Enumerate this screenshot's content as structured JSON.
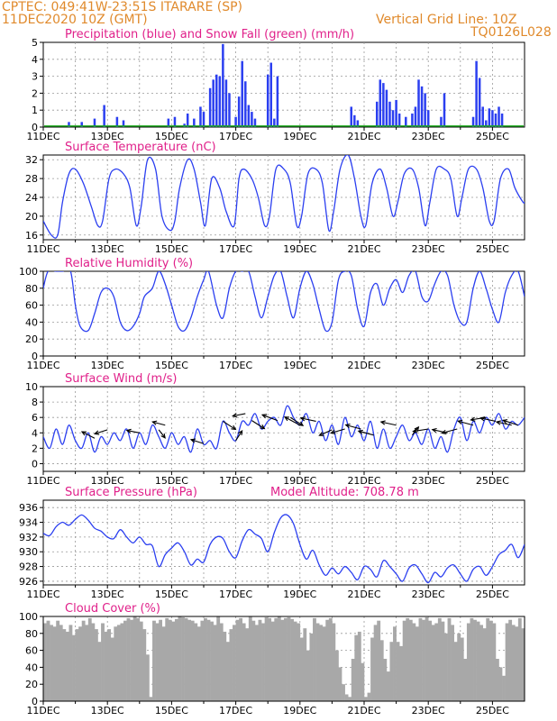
{
  "header": {
    "org_line": "CPTEC:  049:41W-23:51S  ITARARE (SP)",
    "date_line": "11DEC2020 10Z (GMT)",
    "grid_line": "Vertical Grid Line: 10Z",
    "code": "TQ0126L028"
  },
  "colors": {
    "header": "#e08a2c",
    "title": "#e0208a",
    "series": "#2b3ff0",
    "snow": "#1aa81a",
    "cloud": "#a8a8a8"
  },
  "x_labels": [
    "11DEC",
    "13DEC",
    "15DEC",
    "17DEC",
    "19DEC",
    "21DEC",
    "23DEC",
    "25DEC"
  ],
  "chart_data": [
    {
      "type": "bar",
      "title": "Precipitation (blue) and Snow Fall (green) (mm/h)",
      "ylim": [
        0,
        5
      ],
      "yticks": [
        0,
        1,
        2,
        3,
        4,
        5
      ],
      "x_unit": "days since 11DEC 10Z",
      "x": [
        0.8,
        1.2,
        1.6,
        1.9,
        2.3,
        2.5,
        3.9,
        4.1,
        4.4,
        4.5,
        4.7,
        4.9,
        5.0,
        5.2,
        5.3,
        5.4,
        5.5,
        5.6,
        5.7,
        5.8,
        6.0,
        6.1,
        6.2,
        6.3,
        6.4,
        6.5,
        6.6,
        7.0,
        7.1,
        7.2,
        7.3,
        9.6,
        9.7,
        9.8,
        10.4,
        10.5,
        10.6,
        10.7,
        10.8,
        10.9,
        11.0,
        11.1,
        11.3,
        11.5,
        11.6,
        11.7,
        11.8,
        11.9,
        12.0,
        12.4,
        12.5,
        13.4,
        13.5,
        13.6,
        13.7,
        13.8,
        13.9,
        14.0,
        14.1,
        14.2,
        14.3
      ],
      "values": [
        0.3,
        0.3,
        0.5,
        1.3,
        0.6,
        0.4,
        0.5,
        0.6,
        0.2,
        0.8,
        0.5,
        1.2,
        0.9,
        2.3,
        2.8,
        3.1,
        3.0,
        4.9,
        2.8,
        2.0,
        0.6,
        1.8,
        3.9,
        2.7,
        1.3,
        0.9,
        0.5,
        3.1,
        3.8,
        0.5,
        3.0,
        1.2,
        0.7,
        0.4,
        1.5,
        2.8,
        2.6,
        2.2,
        1.5,
        1.0,
        1.6,
        0.8,
        0.6,
        0.8,
        1.2,
        2.8,
        2.4,
        2.0,
        1.0,
        0.6,
        2.0,
        0.6,
        3.9,
        2.9,
        1.2,
        0.4,
        1.1,
        1.0,
        0.8,
        1.2,
        0.8
      ],
      "snow_value": 0.06
    },
    {
      "type": "line",
      "title": "Surface Temperature (nC)",
      "ylim": [
        15,
        33
      ],
      "yticks": [
        16,
        20,
        24,
        28,
        32
      ],
      "x_unit": "days since 11DEC 10Z",
      "x": [
        0,
        0.25,
        0.45,
        0.6,
        0.8,
        1.0,
        1.25,
        1.5,
        1.7,
        1.85,
        2.05,
        2.25,
        2.5,
        2.7,
        2.9,
        3.05,
        3.25,
        3.5,
        3.7,
        3.95,
        4.1,
        4.25,
        4.5,
        4.7,
        4.9,
        5.05,
        5.25,
        5.5,
        5.7,
        5.95,
        6.1,
        6.25,
        6.5,
        6.7,
        6.9,
        7.05,
        7.25,
        7.5,
        7.7,
        7.9,
        8.05,
        8.25,
        8.5,
        8.7,
        8.9,
        9.05,
        9.25,
        9.5,
        9.7,
        9.9,
        10.05,
        10.25,
        10.5,
        10.7,
        10.9,
        11.05,
        11.25,
        11.5,
        11.7,
        11.9,
        12.05,
        12.25,
        12.5,
        12.7,
        12.9,
        13.05,
        13.25,
        13.5,
        13.7,
        13.9,
        14.05,
        14.25,
        14.5,
        14.7
      ],
      "values": [
        19,
        16,
        16,
        23,
        29,
        30,
        27,
        22,
        18,
        19,
        28,
        30,
        29,
        26,
        18,
        22,
        32,
        30,
        20,
        17,
        19,
        26,
        32,
        30,
        23,
        18,
        28,
        26,
        21,
        18,
        28,
        30,
        28,
        24,
        18,
        20,
        30,
        30,
        27,
        18,
        20,
        29,
        30,
        27,
        17,
        21,
        30,
        33,
        28,
        20,
        18,
        27,
        30,
        26,
        20,
        23,
        29,
        30,
        26,
        18,
        23,
        30,
        30,
        28,
        20,
        24,
        30,
        30,
        26,
        19,
        19,
        28,
        30,
        26
      ],
      "x_extra": [
        14.95,
        15.0
      ],
      "values_extra": [
        23,
        23
      ]
    },
    {
      "type": "line",
      "title": "Relative Humidity (%)",
      "ylim": [
        0,
        100
      ],
      "yticks": [
        0,
        20,
        40,
        60,
        80,
        100
      ],
      "x_unit": "days since 11DEC 10Z",
      "x": [
        0,
        0.15,
        0.4,
        0.6,
        0.85,
        1.0,
        1.15,
        1.4,
        1.6,
        1.8,
        2.0,
        2.2,
        2.4,
        2.6,
        2.8,
        3.0,
        3.15,
        3.4,
        3.6,
        3.8,
        4.0,
        4.2,
        4.4,
        4.6,
        4.8,
        5.0,
        5.15,
        5.4,
        5.6,
        5.8,
        6.0,
        6.2,
        6.4,
        6.6,
        6.8,
        7.0,
        7.2,
        7.4,
        7.6,
        7.8,
        8.0,
        8.2,
        8.4,
        8.6,
        8.8,
        9.0,
        9.2,
        9.4,
        9.6,
        9.8,
        10.0,
        10.2,
        10.4,
        10.6,
        10.8,
        11.0,
        11.2,
        11.4,
        11.6,
        11.8,
        12.0,
        12.2,
        12.4,
        12.6,
        12.8,
        13.0,
        13.2,
        13.4,
        13.6,
        13.8,
        14.0,
        14.2,
        14.4,
        14.6,
        14.8,
        15.0
      ],
      "values": [
        80,
        100,
        100,
        100,
        100,
        60,
        35,
        30,
        50,
        75,
        80,
        70,
        40,
        30,
        35,
        50,
        70,
        80,
        100,
        85,
        60,
        35,
        30,
        45,
        70,
        90,
        100,
        60,
        45,
        80,
        100,
        100,
        100,
        70,
        45,
        70,
        95,
        100,
        70,
        45,
        80,
        100,
        85,
        55,
        30,
        40,
        90,
        100,
        95,
        55,
        35,
        75,
        85,
        60,
        80,
        90,
        75,
        95,
        100,
        70,
        65,
        85,
        100,
        95,
        60,
        40,
        40,
        80,
        100,
        80,
        55,
        40,
        75,
        95,
        100,
        70
      ]
    },
    {
      "type": "line",
      "title": "Surface Wind (m/s)",
      "ylim": [
        -1,
        10
      ],
      "yticks": [
        0,
        2,
        4,
        6,
        8,
        10
      ],
      "x_unit": "days since 11DEC 10Z",
      "x": [
        0,
        0.2,
        0.4,
        0.6,
        0.8,
        1.0,
        1.2,
        1.4,
        1.6,
        1.8,
        2.0,
        2.2,
        2.4,
        2.6,
        2.8,
        3.0,
        3.2,
        3.4,
        3.6,
        3.8,
        4.0,
        4.2,
        4.4,
        4.6,
        4.8,
        5.0,
        5.2,
        5.4,
        5.6,
        5.8,
        6.0,
        6.2,
        6.4,
        6.6,
        6.8,
        7.0,
        7.2,
        7.4,
        7.6,
        7.8,
        8.0,
        8.2,
        8.4,
        8.6,
        8.8,
        9.0,
        9.2,
        9.4,
        9.6,
        9.8,
        10.0,
        10.2,
        10.4,
        10.6,
        10.8,
        11.0,
        11.2,
        11.4,
        11.6,
        11.8,
        12.0,
        12.2,
        12.4,
        12.6,
        12.8,
        13.0,
        13.2,
        13.4,
        13.6,
        13.8,
        14.0,
        14.2,
        14.4,
        14.6,
        14.8,
        15.0
      ],
      "values": [
        3.5,
        2.0,
        4.5,
        2.5,
        5.0,
        3.0,
        2.0,
        4.0,
        1.5,
        3.5,
        2.5,
        4.0,
        3.0,
        4.5,
        2.0,
        4.0,
        2.5,
        5.0,
        3.5,
        2.0,
        4.0,
        2.5,
        3.5,
        1.5,
        4.5,
        2.5,
        3.0,
        2.0,
        5.5,
        4.0,
        3.0,
        5.5,
        5.0,
        6.5,
        4.5,
        5.5,
        6.0,
        5.0,
        7.5,
        6.0,
        5.0,
        6.5,
        4.0,
        5.5,
        3.0,
        5.0,
        2.5,
        6.0,
        3.5,
        5.0,
        3.0,
        5.5,
        2.0,
        4.5,
        2.0,
        3.5,
        5.0,
        3.0,
        4.0,
        2.5,
        4.5,
        2.0,
        3.5,
        1.5,
        4.5,
        6.0,
        3.0,
        5.5,
        4.0,
        6.0,
        5.0,
        6.5,
        4.5,
        5.5,
        5.0,
        6.0
      ],
      "arrows": [
        [
          1.6,
          3.3,
          -1,
          0.8
        ],
        [
          2.0,
          4.4,
          -1,
          -0.5
        ],
        [
          3.0,
          4.0,
          -1,
          0.3
        ],
        [
          3.6,
          4.4,
          0.5,
          -1
        ],
        [
          3.8,
          5.0,
          -1,
          0.4
        ],
        [
          5.0,
          2.6,
          -1,
          0.5
        ],
        [
          5.6,
          5.5,
          1,
          -1
        ],
        [
          6.0,
          3.0,
          0.5,
          1.2
        ],
        [
          6.3,
          6.5,
          -1,
          -0.3
        ],
        [
          6.5,
          5.6,
          1,
          -1
        ],
        [
          7.3,
          5.6,
          -1.2,
          0.7
        ],
        [
          7.7,
          6.0,
          1,
          -1
        ],
        [
          8.0,
          5.0,
          -1.2,
          1
        ],
        [
          8.5,
          5.5,
          -1.2,
          0.4
        ],
        [
          9.0,
          4.4,
          -1,
          -0.7
        ],
        [
          9.4,
          4.5,
          -1.1,
          -0.5
        ],
        [
          9.9,
          4.5,
          -1.2,
          0.5
        ],
        [
          10.3,
          3.7,
          -1.2,
          0.5
        ],
        [
          11.0,
          5.0,
          -1.2,
          0.4
        ],
        [
          11.5,
          3.7,
          0.5,
          1
        ],
        [
          12.0,
          4.5,
          -1.2,
          -0.3
        ],
        [
          12.6,
          4.0,
          -1.2,
          0.4
        ],
        [
          12.9,
          4.5,
          -1.2,
          -0.5
        ],
        [
          13.4,
          5.0,
          -1.2,
          0.5
        ],
        [
          13.8,
          6.0,
          -1.2,
          -0.3
        ],
        [
          14.1,
          5.5,
          -1.2,
          0.4
        ],
        [
          14.6,
          5.0,
          -1.2,
          0.4
        ],
        [
          14.8,
          5.0,
          -1.2,
          0.6
        ]
      ]
    },
    {
      "type": "line",
      "title": "Surface Pressure (hPa)",
      "subtitle": "Model Altitude: 708.78 m",
      "ylim": [
        925.5,
        937
      ],
      "yticks": [
        926,
        928,
        930,
        932,
        934,
        936
      ],
      "x_unit": "days since 11DEC 10Z",
      "x": [
        0,
        0.2,
        0.4,
        0.6,
        0.8,
        1.0,
        1.2,
        1.4,
        1.6,
        1.8,
        2.0,
        2.2,
        2.4,
        2.6,
        2.8,
        3.0,
        3.2,
        3.4,
        3.6,
        3.8,
        4.0,
        4.2,
        4.4,
        4.6,
        4.8,
        5.0,
        5.2,
        5.4,
        5.6,
        5.8,
        6.0,
        6.2,
        6.4,
        6.6,
        6.8,
        7.0,
        7.2,
        7.4,
        7.6,
        7.8,
        8.0,
        8.2,
        8.4,
        8.6,
        8.8,
        9.0,
        9.2,
        9.4,
        9.6,
        9.8,
        10.0,
        10.2,
        10.4,
        10.6,
        10.8,
        11.0,
        11.2,
        11.4,
        11.6,
        11.8,
        12.0,
        12.2,
        12.4,
        12.6,
        12.8,
        13.0,
        13.2,
        13.4,
        13.6,
        13.8,
        14.0,
        14.2,
        14.4,
        14.6,
        14.8,
        15.0
      ],
      "values": [
        932.5,
        932.2,
        933.4,
        934.0,
        933.6,
        934.4,
        935.0,
        934.3,
        933.2,
        932.8,
        932.0,
        931.8,
        933.0,
        932.0,
        931.2,
        932.0,
        931.0,
        930.8,
        928.0,
        929.6,
        930.5,
        931.2,
        930.0,
        928.2,
        929.0,
        928.6,
        931.0,
        932.0,
        931.8,
        930.0,
        929.2,
        931.5,
        933.0,
        932.4,
        931.8,
        930.0,
        932.6,
        934.6,
        935.0,
        933.8,
        931.0,
        929.0,
        930.2,
        928.2,
        926.8,
        927.8,
        927.0,
        928.0,
        927.2,
        926.2,
        928.0,
        927.6,
        926.6,
        928.8,
        928.0,
        927.0,
        926.0,
        927.8,
        928.2,
        927.0,
        925.8,
        927.2,
        926.6,
        927.8,
        928.2,
        927.0,
        926.0,
        927.6,
        928.0,
        926.8,
        928.0,
        929.6,
        930.2,
        931.0,
        929.2,
        931.0
      ]
    },
    {
      "type": "bar",
      "title": "Cloud Cover (%)",
      "ylim": [
        0,
        100
      ],
      "yticks": [
        0,
        20,
        40,
        60,
        80,
        100
      ],
      "x_unit": "days since 11DEC 10Z",
      "x_step": 0.1,
      "values": [
        92,
        95,
        90,
        88,
        95,
        90,
        85,
        82,
        90,
        78,
        85,
        88,
        95,
        90,
        98,
        92,
        85,
        70,
        92,
        82,
        85,
        75,
        88,
        90,
        92,
        95,
        98,
        96,
        100,
        98,
        94,
        85,
        55,
        5,
        95,
        92,
        96,
        88,
        98,
        96,
        94,
        97,
        100,
        99,
        98,
        96,
        95,
        92,
        88,
        95,
        98,
        96,
        94,
        90,
        100,
        92,
        82,
        70,
        85,
        90,
        96,
        98,
        92,
        86,
        100,
        95,
        90,
        96,
        92,
        99,
        98,
        94,
        98,
        100,
        96,
        98,
        99,
        97,
        94,
        92,
        75,
        86,
        60,
        80,
        98,
        92,
        90,
        88,
        96,
        98,
        92,
        60,
        40,
        20,
        8,
        5,
        50,
        78,
        82,
        45,
        5,
        10,
        75,
        90,
        95,
        72,
        50,
        35,
        70,
        88,
        70,
        65,
        95,
        98,
        96,
        92,
        88,
        98,
        96,
        99,
        95,
        90,
        92,
        98,
        94,
        80,
        98,
        90,
        70,
        80,
        75,
        50,
        92,
        98,
        96,
        94,
        90,
        86,
        98,
        95,
        92,
        50,
        40,
        30,
        92,
        96,
        90,
        88,
        98,
        86
      ]
    }
  ]
}
